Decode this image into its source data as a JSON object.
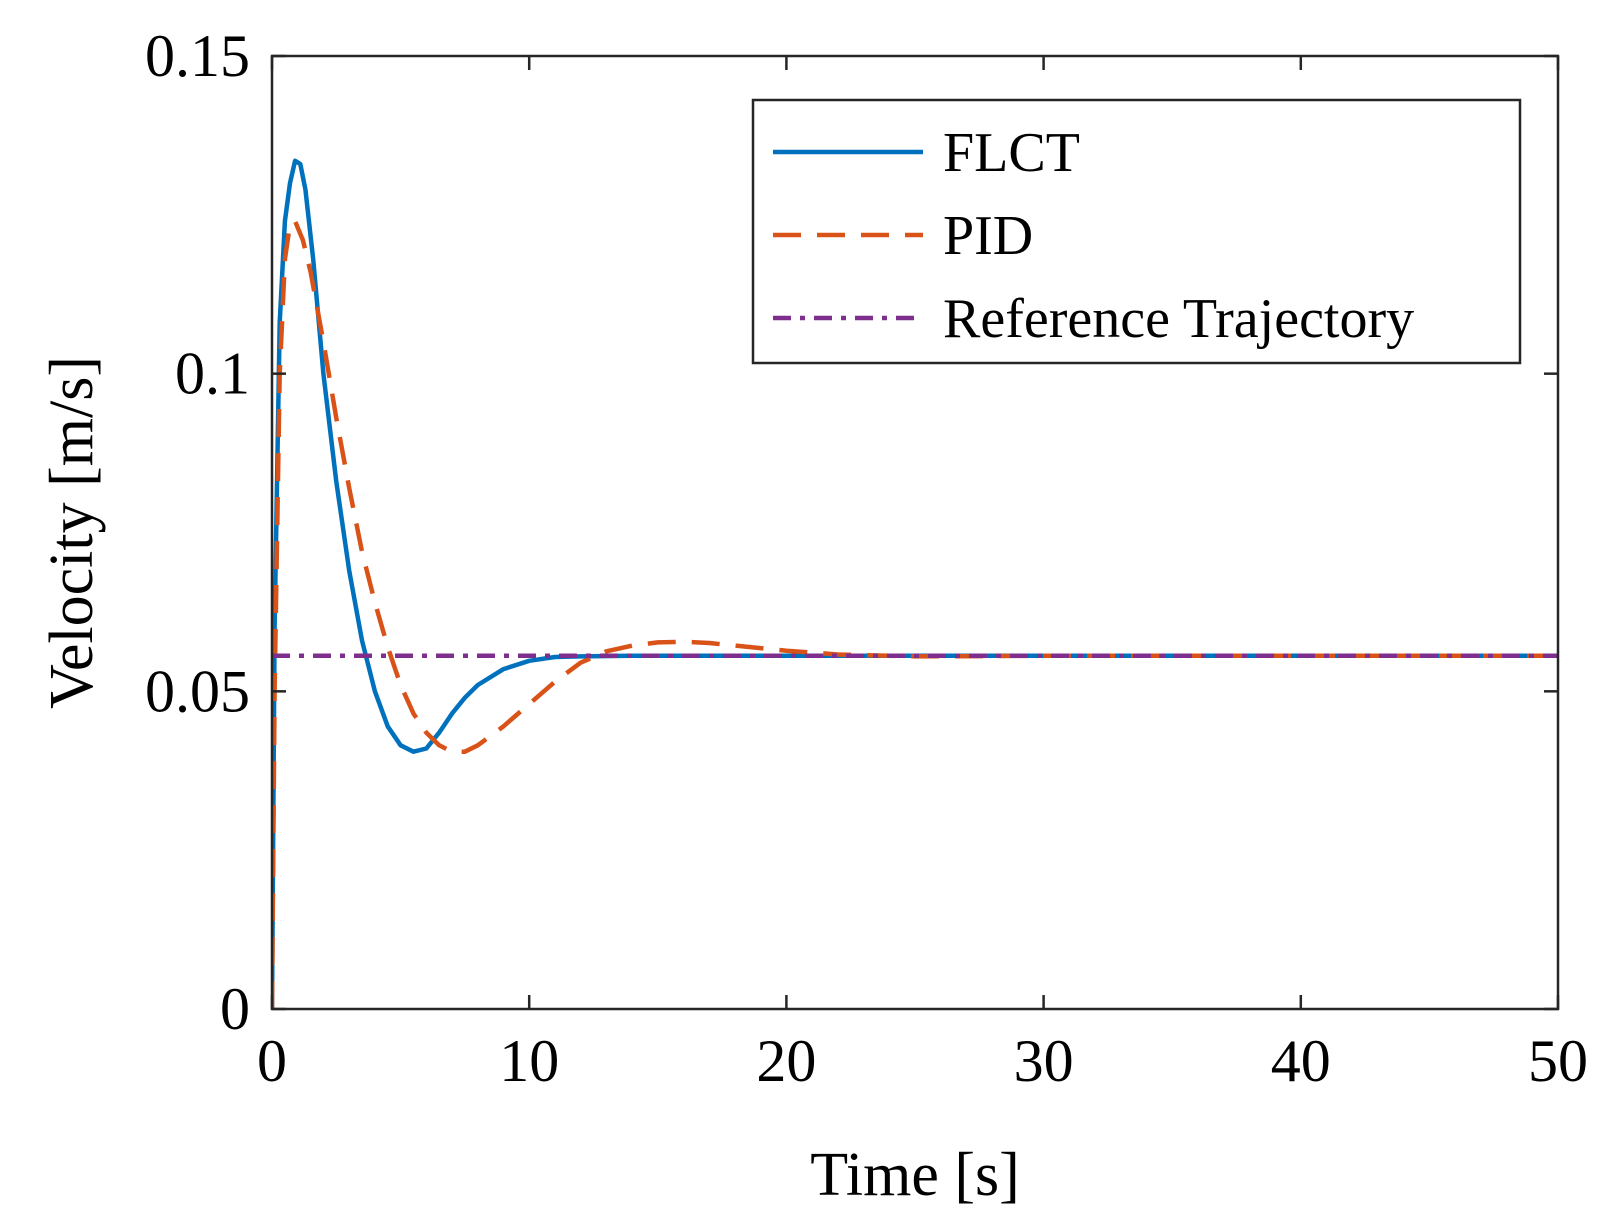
{
  "chart_data": {
    "type": "line",
    "title": "",
    "xlabel": "Time [s]",
    "ylabel": "Velocity [m/s]",
    "xlim": [
      0,
      50
    ],
    "ylim": [
      0,
      0.15
    ],
    "xticks": [
      0,
      10,
      20,
      30,
      40,
      50
    ],
    "xtick_labels": [
      "0",
      "10",
      "20",
      "30",
      "40",
      "50"
    ],
    "yticks": [
      0,
      0.05,
      0.1,
      0.15
    ],
    "ytick_labels": [
      "0",
      "0.05",
      "0.1",
      "0.15"
    ],
    "grid": false,
    "legend_position": "top-right",
    "series": [
      {
        "name": "FLCT",
        "style": "solid",
        "color": "#0072BD",
        "x": [
          0,
          0.1,
          0.3,
          0.5,
          0.7,
          0.9,
          1.1,
          1.3,
          1.6,
          2.0,
          2.5,
          3.0,
          3.5,
          4.0,
          4.5,
          5.0,
          5.5,
          6.0,
          6.5,
          7.0,
          7.5,
          8.0,
          9.0,
          10.0,
          11.0,
          12.0,
          14.0,
          20.0,
          30.0,
          40.0,
          50.0
        ],
        "y": [
          0,
          0.06,
          0.108,
          0.124,
          0.13,
          0.1335,
          0.133,
          0.129,
          0.118,
          0.1,
          0.083,
          0.069,
          0.058,
          0.05,
          0.0445,
          0.0415,
          0.0405,
          0.041,
          0.0435,
          0.0465,
          0.049,
          0.051,
          0.0535,
          0.0548,
          0.0554,
          0.0555,
          0.0556,
          0.0556,
          0.0556,
          0.0556,
          0.0556
        ]
      },
      {
        "name": "PID",
        "style": "dashed",
        "color": "#D95319",
        "x": [
          0,
          0.1,
          0.3,
          0.5,
          0.7,
          0.9,
          1.2,
          1.5,
          2.0,
          2.5,
          3.0,
          3.5,
          4.0,
          4.5,
          5.0,
          5.5,
          6.0,
          6.5,
          7.0,
          7.5,
          8.0,
          9.0,
          10.0,
          11.0,
          12.0,
          13.0,
          14.0,
          15.0,
          16.0,
          17.0,
          18.0,
          20.0,
          22.0,
          25.0,
          30.0,
          40.0,
          50.0
        ],
        "y": [
          0,
          0.05,
          0.1,
          0.118,
          0.1235,
          0.124,
          0.121,
          0.116,
          0.105,
          0.093,
          0.082,
          0.072,
          0.064,
          0.057,
          0.051,
          0.0465,
          0.0435,
          0.0415,
          0.0405,
          0.0405,
          0.0415,
          0.0445,
          0.048,
          0.0515,
          0.0545,
          0.0563,
          0.0572,
          0.0577,
          0.0578,
          0.0576,
          0.0572,
          0.0564,
          0.0558,
          0.0555,
          0.0556,
          0.0556,
          0.0556
        ]
      },
      {
        "name": "Reference Trajectory",
        "style": "dashdot",
        "color": "#7E2F8E",
        "x": [
          0,
          50
        ],
        "y": [
          0.0556,
          0.0556
        ]
      }
    ]
  }
}
